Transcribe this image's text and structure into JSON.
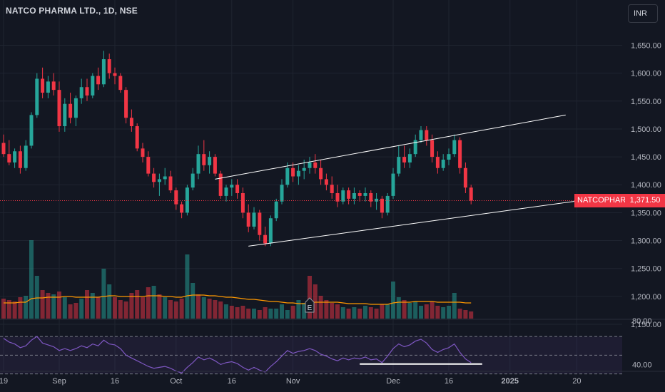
{
  "title": "NATCO PHARMA LTD., 1D, NSE",
  "currency": "INR",
  "symbol_tag": "NATCOPHARM",
  "last_price_label": "1,371.50",
  "colors": {
    "up": "#26a69a",
    "down": "#f23645",
    "background": "#131722",
    "grid": "#1f2430",
    "rsi": "#7e57c2",
    "volume_ma": "#ff9800",
    "trendline": "#ffffff",
    "price_line": "#f23645"
  },
  "chart_data": {
    "type": "candlestick",
    "price_axis": {
      "min": 1150,
      "max": 1680,
      "ticks": [
        1150,
        1200,
        1250,
        1300,
        1350,
        1400,
        1450,
        1500,
        1550,
        1600,
        1650
      ],
      "tick_labels": [
        "1,150.00",
        "1,200.00",
        "1,250.00",
        "1,300.00",
        "1,350.00",
        "1,400.00",
        "1,450.00",
        "1,500.00",
        "1,550.00",
        "1,600.00",
        "1,650.00"
      ]
    },
    "x_ticks": [
      {
        "label": "19",
        "index": 0
      },
      {
        "label": "Sep",
        "index": 10
      },
      {
        "label": "16",
        "index": 20
      },
      {
        "label": "Oct",
        "index": 31
      },
      {
        "label": "16",
        "index": 41
      },
      {
        "label": "Nov",
        "index": 52
      },
      {
        "label": "Dec",
        "index": 70
      },
      {
        "label": "16",
        "index": 80
      },
      {
        "label": "2025",
        "index": 91
      },
      {
        "label": "20",
        "index": 103
      }
    ],
    "last_price": 1371.5,
    "candles": [
      [
        1475,
        1490,
        1450,
        1455
      ],
      [
        1455,
        1480,
        1435,
        1440
      ],
      [
        1440,
        1465,
        1430,
        1460
      ],
      [
        1460,
        1470,
        1420,
        1430
      ],
      [
        1430,
        1480,
        1425,
        1470
      ],
      [
        1470,
        1530,
        1465,
        1525
      ],
      [
        1525,
        1600,
        1520,
        1590
      ],
      [
        1590,
        1610,
        1555,
        1565
      ],
      [
        1565,
        1595,
        1555,
        1585
      ],
      [
        1585,
        1600,
        1560,
        1570
      ],
      [
        1570,
        1585,
        1495,
        1505
      ],
      [
        1505,
        1555,
        1495,
        1545
      ],
      [
        1545,
        1565,
        1510,
        1520
      ],
      [
        1520,
        1560,
        1505,
        1555
      ],
      [
        1555,
        1590,
        1545,
        1575
      ],
      [
        1575,
        1590,
        1550,
        1560
      ],
      [
        1560,
        1600,
        1555,
        1595
      ],
      [
        1595,
        1610,
        1570,
        1580
      ],
      [
        1580,
        1640,
        1575,
        1625
      ],
      [
        1625,
        1635,
        1590,
        1600
      ],
      [
        1600,
        1610,
        1580,
        1595
      ],
      [
        1595,
        1600,
        1565,
        1570
      ],
      [
        1570,
        1575,
        1510,
        1520
      ],
      [
        1520,
        1535,
        1495,
        1505
      ],
      [
        1505,
        1510,
        1460,
        1465
      ],
      [
        1465,
        1475,
        1440,
        1450
      ],
      [
        1450,
        1460,
        1415,
        1420
      ],
      [
        1420,
        1430,
        1395,
        1405
      ],
      [
        1405,
        1420,
        1380,
        1410
      ],
      [
        1410,
        1430,
        1400,
        1415
      ],
      [
        1415,
        1425,
        1385,
        1390
      ],
      [
        1390,
        1395,
        1355,
        1365
      ],
      [
        1365,
        1370,
        1340,
        1350
      ],
      [
        1350,
        1400,
        1345,
        1395
      ],
      [
        1395,
        1430,
        1390,
        1420
      ],
      [
        1420,
        1470,
        1410,
        1455
      ],
      [
        1455,
        1480,
        1425,
        1435
      ],
      [
        1435,
        1460,
        1420,
        1450
      ],
      [
        1450,
        1455,
        1415,
        1420
      ],
      [
        1420,
        1425,
        1375,
        1380
      ],
      [
        1380,
        1400,
        1370,
        1395
      ],
      [
        1395,
        1410,
        1380,
        1400
      ],
      [
        1400,
        1410,
        1375,
        1385
      ],
      [
        1385,
        1395,
        1340,
        1350
      ],
      [
        1350,
        1365,
        1315,
        1325
      ],
      [
        1325,
        1360,
        1320,
        1350
      ],
      [
        1350,
        1355,
        1300,
        1310
      ],
      [
        1310,
        1325,
        1290,
        1295
      ],
      [
        1295,
        1345,
        1290,
        1340
      ],
      [
        1340,
        1375,
        1335,
        1370
      ],
      [
        1370,
        1410,
        1365,
        1400
      ],
      [
        1400,
        1440,
        1395,
        1430
      ],
      [
        1430,
        1440,
        1405,
        1415
      ],
      [
        1415,
        1435,
        1400,
        1425
      ],
      [
        1425,
        1445,
        1410,
        1430
      ],
      [
        1430,
        1450,
        1420,
        1440
      ],
      [
        1440,
        1455,
        1420,
        1430
      ],
      [
        1430,
        1445,
        1400,
        1410
      ],
      [
        1410,
        1420,
        1390,
        1400
      ],
      [
        1400,
        1415,
        1375,
        1385
      ],
      [
        1385,
        1400,
        1360,
        1370
      ],
      [
        1370,
        1395,
        1365,
        1390
      ],
      [
        1390,
        1395,
        1365,
        1375
      ],
      [
        1375,
        1395,
        1365,
        1385
      ],
      [
        1385,
        1390,
        1370,
        1380
      ],
      [
        1380,
        1395,
        1370,
        1385
      ],
      [
        1385,
        1390,
        1360,
        1370
      ],
      [
        1370,
        1385,
        1355,
        1375
      ],
      [
        1375,
        1380,
        1340,
        1350
      ],
      [
        1350,
        1385,
        1345,
        1380
      ],
      [
        1380,
        1430,
        1375,
        1420
      ],
      [
        1420,
        1470,
        1415,
        1450
      ],
      [
        1450,
        1470,
        1430,
        1440
      ],
      [
        1440,
        1465,
        1430,
        1455
      ],
      [
        1455,
        1490,
        1450,
        1480
      ],
      [
        1480,
        1505,
        1475,
        1498
      ],
      [
        1498,
        1505,
        1470,
        1480
      ],
      [
        1480,
        1490,
        1440,
        1450
      ],
      [
        1450,
        1460,
        1420,
        1430
      ],
      [
        1430,
        1455,
        1425,
        1445
      ],
      [
        1445,
        1465,
        1435,
        1455
      ],
      [
        1455,
        1490,
        1450,
        1480
      ],
      [
        1480,
        1485,
        1420,
        1430
      ],
      [
        1430,
        1440,
        1385,
        1395
      ],
      [
        1395,
        1400,
        1365,
        1371.5
      ]
    ],
    "volume": [
      [
        28,
        0
      ],
      [
        26,
        0
      ],
      [
        24,
        0
      ],
      [
        30,
        0
      ],
      [
        32,
        1
      ],
      [
        110,
        1
      ],
      [
        60,
        1
      ],
      [
        40,
        0
      ],
      [
        36,
        0
      ],
      [
        34,
        1
      ],
      [
        38,
        0
      ],
      [
        30,
        1
      ],
      [
        20,
        0
      ],
      [
        22,
        0
      ],
      [
        28,
        1
      ],
      [
        40,
        0
      ],
      [
        36,
        1
      ],
      [
        30,
        0
      ],
      [
        70,
        1
      ],
      [
        48,
        1
      ],
      [
        30,
        0
      ],
      [
        26,
        0
      ],
      [
        24,
        0
      ],
      [
        36,
        0
      ],
      [
        40,
        0
      ],
      [
        30,
        0
      ],
      [
        44,
        0
      ],
      [
        46,
        1
      ],
      [
        34,
        0
      ],
      [
        30,
        1
      ],
      [
        26,
        0
      ],
      [
        24,
        0
      ],
      [
        28,
        0
      ],
      [
        90,
        1
      ],
      [
        50,
        1
      ],
      [
        34,
        0
      ],
      [
        30,
        1
      ],
      [
        28,
        0
      ],
      [
        26,
        0
      ],
      [
        24,
        0
      ],
      [
        20,
        1
      ],
      [
        18,
        0
      ],
      [
        16,
        0
      ],
      [
        18,
        0
      ],
      [
        14,
        0
      ],
      [
        14,
        1
      ],
      [
        12,
        0
      ],
      [
        16,
        0
      ],
      [
        14,
        1
      ],
      [
        14,
        1
      ],
      [
        20,
        1
      ],
      [
        12,
        1
      ],
      [
        18,
        0
      ],
      [
        26,
        1
      ],
      [
        22,
        1
      ],
      [
        60,
        0
      ],
      [
        48,
        0
      ],
      [
        32,
        0
      ],
      [
        26,
        0
      ],
      [
        22,
        0
      ],
      [
        20,
        0
      ],
      [
        16,
        1
      ],
      [
        14,
        0
      ],
      [
        16,
        1
      ],
      [
        14,
        0
      ],
      [
        18,
        1
      ],
      [
        16,
        0
      ],
      [
        14,
        0
      ],
      [
        20,
        0
      ],
      [
        20,
        1
      ],
      [
        52,
        1
      ],
      [
        30,
        1
      ],
      [
        26,
        0
      ],
      [
        22,
        1
      ],
      [
        24,
        1
      ],
      [
        18,
        1
      ],
      [
        20,
        0
      ],
      [
        24,
        0
      ],
      [
        18,
        0
      ],
      [
        16,
        1
      ],
      [
        18,
        1
      ],
      [
        36,
        1
      ],
      [
        14,
        0
      ],
      [
        12,
        0
      ],
      [
        10,
        0
      ]
    ],
    "volume_ma": [
      22,
      22,
      22,
      23,
      23,
      28,
      29,
      29,
      30,
      30,
      30,
      31,
      31,
      30,
      30,
      30,
      30,
      30,
      31,
      32,
      32,
      31,
      31,
      31,
      31,
      31,
      32,
      32,
      32,
      31,
      31,
      30,
      30,
      32,
      33,
      33,
      33,
      32,
      32,
      31,
      30,
      30,
      29,
      28,
      27,
      27,
      26,
      25,
      24,
      24,
      23,
      22,
      22,
      21,
      21,
      22,
      23,
      23,
      23,
      23,
      23,
      22,
      21,
      21,
      21,
      21,
      20,
      20,
      20,
      20,
      22,
      23,
      23,
      23,
      24,
      24,
      24,
      24,
      23,
      23,
      23,
      23,
      23,
      22,
      22
    ],
    "rsi": [
      68,
      64,
      62,
      58,
      60,
      66,
      70,
      63,
      61,
      59,
      55,
      57,
      55,
      57,
      60,
      58,
      62,
      60,
      66,
      62,
      61,
      57,
      50,
      47,
      44,
      41,
      38,
      36,
      37,
      38,
      36,
      33,
      31,
      37,
      42,
      48,
      45,
      47,
      44,
      40,
      42,
      43,
      41,
      37,
      34,
      37,
      34,
      32,
      38,
      43,
      49,
      55,
      52,
      54,
      55,
      57,
      55,
      51,
      49,
      46,
      44,
      47,
      45,
      47,
      46,
      48,
      45,
      46,
      42,
      49,
      57,
      62,
      59,
      61,
      65,
      67,
      63,
      56,
      53,
      56,
      58,
      62,
      53,
      46,
      42
    ],
    "rsi_axis": {
      "min": 35,
      "max": 83,
      "tick_labels": [
        "80.00",
        "40.00"
      ],
      "band_upper": 70,
      "band_lower": 30
    },
    "trendlines": [
      {
        "from": [
          38,
          1410
        ],
        "to": [
          101,
          1525
        ]
      },
      {
        "from": [
          44,
          1290
        ],
        "to": [
          106,
          1375
        ]
      }
    ],
    "rsi_support": {
      "from": [
        64,
        40.5
      ],
      "to": [
        86,
        40.5
      ]
    },
    "earnings_marker_index": 55
  }
}
